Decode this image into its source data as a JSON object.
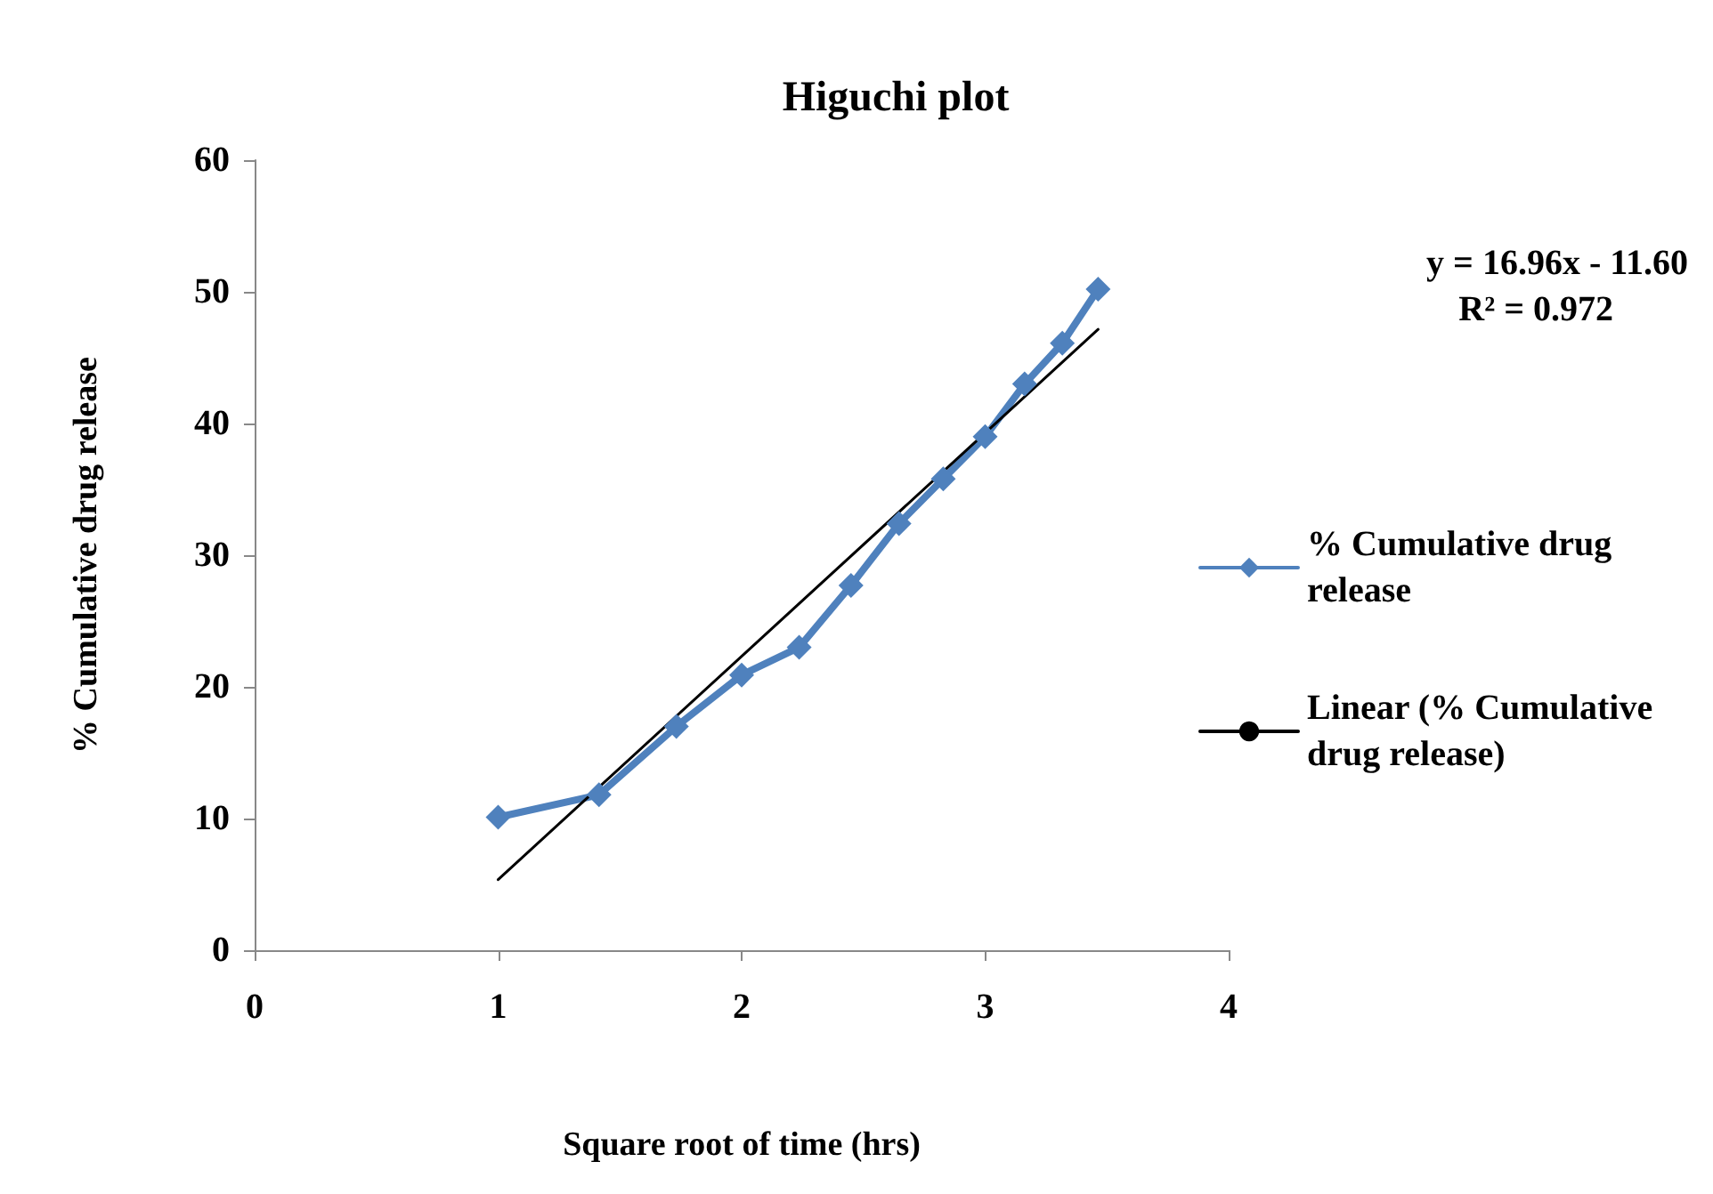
{
  "chart_data": {
    "type": "line",
    "title": "Higuchi plot",
    "xlabel": "Square root of time (hrs)",
    "ylabel": "% Cumulative drug release",
    "x": [
      1,
      1.414,
      1.732,
      2,
      2.236,
      2.449,
      2.646,
      2.828,
      3,
      3.162,
      3.317,
      3.464
    ],
    "series": [
      {
        "name": "% Cumulative drug release",
        "color": "#4f81bd",
        "values": [
          10.1,
          11.8,
          17.0,
          20.9,
          23.0,
          27.7,
          32.4,
          35.8,
          39.0,
          43.0,
          46.1,
          50.2
        ],
        "marker": "diamond"
      },
      {
        "name": "Linear (% Cumulative drug release)",
        "color": "#000000",
        "type": "line",
        "x": [
          1,
          3.464
        ],
        "values": [
          5.36,
          47.15
        ],
        "marker": "none"
      }
    ],
    "annotations": [
      "y = 16.96x - 11.60",
      "R² = 0.972"
    ],
    "xlim": [
      0,
      4
    ],
    "xticks": [
      0,
      1,
      2,
      3,
      4
    ],
    "ylim": [
      0,
      60
    ],
    "yticks": [
      0,
      10,
      20,
      30,
      40,
      50,
      60
    ],
    "grid": false,
    "legend": "right"
  }
}
